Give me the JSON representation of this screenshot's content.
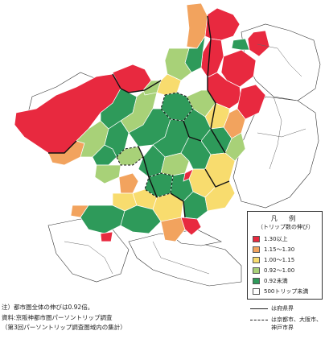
{
  "legend": {
    "title": "凡 例",
    "subtitle": "（トリップ数の伸び）",
    "items": [
      {
        "label": "1.30以上",
        "color": "#e8293f"
      },
      {
        "label": "1.15～1.30",
        "color": "#f2a35e"
      },
      {
        "label": "1.00～1.15",
        "color": "#f8dc6e"
      },
      {
        "label": "0.92～1.00",
        "color": "#a8d178"
      },
      {
        "label": "0.92未満",
        "color": "#2e9a5a"
      },
      {
        "label": "500トリップ未満",
        "color": "#ffffff"
      }
    ],
    "lines": [
      {
        "style": "solid",
        "label": "は府県界"
      },
      {
        "style": "dashed",
        "label": "は京都市、大阪市、",
        "label2": "神戸市界"
      }
    ]
  },
  "notes": [
    "注）都市圏全体の伸びは0.92倍。",
    "資料:京阪神都市圏パーソントリップ調査",
    "（第3回パーソントリップ調査圏域内の集計）"
  ],
  "colors": {
    "sea": "#ffffff",
    "outline": "#ffffff",
    "border": "#111111"
  }
}
